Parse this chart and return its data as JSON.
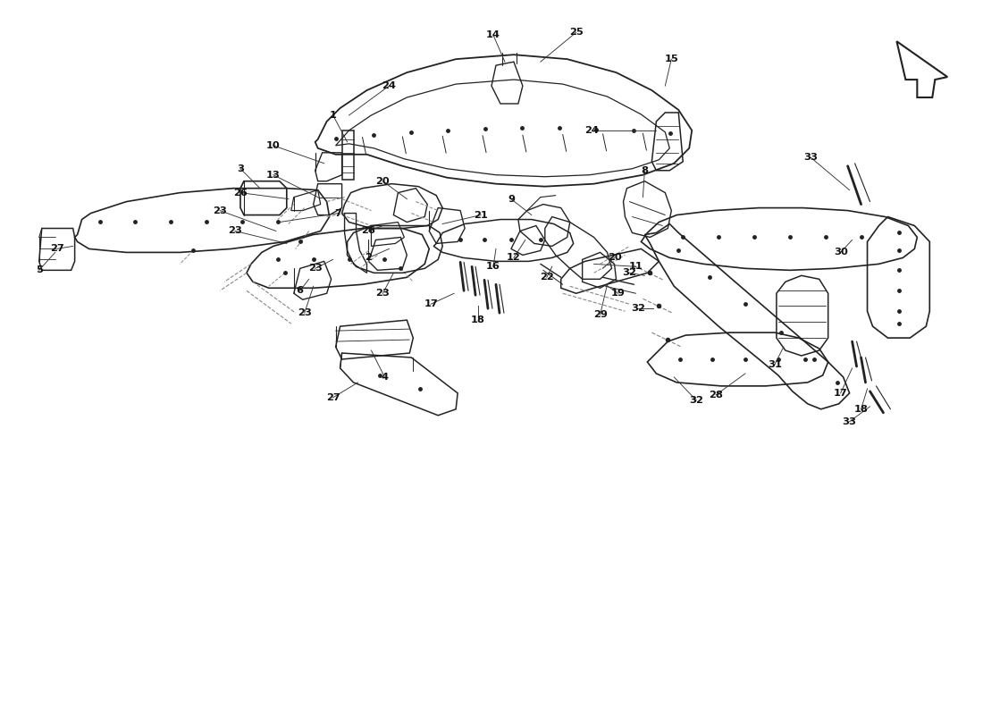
{
  "bg_color": "#ffffff",
  "line_color": "#222222",
  "dash_color": "#888888",
  "fig_width": 11.0,
  "fig_height": 8.0,
  "dpi": 100,
  "xmin": 0,
  "xmax": 11,
  "ymin": 0,
  "ymax": 8
}
